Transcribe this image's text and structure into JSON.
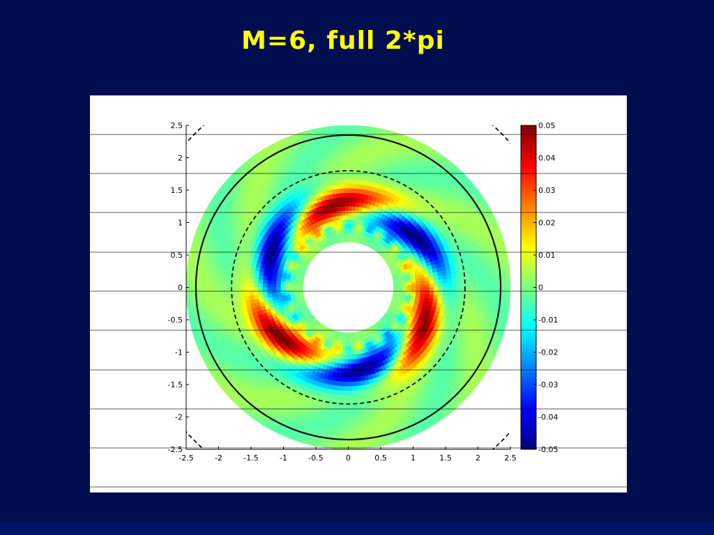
{
  "slide": {
    "title": "M=6, full 2*pi"
  },
  "chart_data": {
    "type": "heatmap",
    "title": "M=6, full 2*pi",
    "xlabel": "",
    "ylabel": "",
    "xlim": [
      -2.5,
      2.5
    ],
    "ylim": [
      -2.5,
      2.5
    ],
    "x_ticks": [
      "-2.5",
      "-2",
      "-1.5",
      "-1",
      "-0.5",
      "0",
      "0.5",
      "1",
      "1.5",
      "2",
      "2.5"
    ],
    "y_ticks": [
      "2.5",
      "2",
      "1.5",
      "1",
      "0.5",
      "0",
      "-0.5",
      "-1",
      "-1.5",
      "-2",
      "-2.5"
    ],
    "colorbar": {
      "colormap": "jet",
      "range": [
        -0.05,
        0.05
      ],
      "ticks": [
        "0.05",
        "0.04",
        "0.03",
        "0.02",
        "0.01",
        "0",
        "-0.01",
        "-0.02",
        "-0.03",
        "-0.04",
        "-0.05"
      ]
    },
    "domain": {
      "shape": "annulus",
      "inner_radius": 0.7,
      "outer_radius": 2.5
    },
    "reference_circles": [
      {
        "radius": 2.35,
        "style": "solid"
      },
      {
        "radius": 1.8,
        "style": "dashed"
      },
      {
        "radius": 3.35,
        "style": "dashed"
      }
    ],
    "mode_number": 6,
    "field_range": [
      -0.05,
      0.05
    ],
    "grid": false
  },
  "colors": {
    "background": "#000d4f",
    "title": "#ffff00",
    "panel": "#ffffff"
  }
}
